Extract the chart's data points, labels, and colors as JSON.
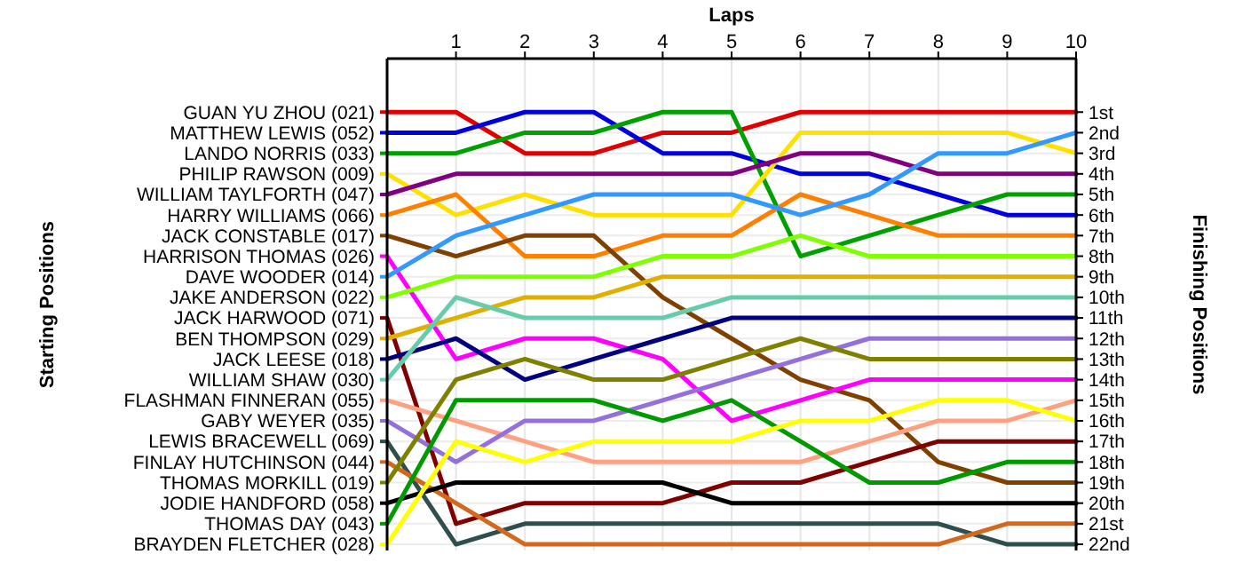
{
  "chart_data": {
    "type": "line",
    "xlabel": "Laps",
    "ylabel": "Finishing Positions",
    "x": [
      0,
      1,
      2,
      3,
      4,
      5,
      6,
      7,
      8,
      9,
      10
    ],
    "xlim": [
      0,
      10
    ],
    "xticks": [
      1,
      2,
      3,
      4,
      5,
      6,
      7,
      8,
      9,
      10
    ],
    "ylim": [
      22.3,
      -1.6
    ],
    "grid": true,
    "legend": "left",
    "marker": "none",
    "line_style": "solid",
    "yticks": [
      {
        "value": 1,
        "label": "1st"
      },
      {
        "value": 2,
        "label": "2nd"
      },
      {
        "value": 3,
        "label": "3rd"
      },
      {
        "value": 4,
        "label": "4th"
      },
      {
        "value": 5,
        "label": "5th"
      },
      {
        "value": 6,
        "label": "6th"
      },
      {
        "value": 7,
        "label": "7th"
      },
      {
        "value": 8,
        "label": "8th"
      },
      {
        "value": 9,
        "label": "9th"
      },
      {
        "value": 10,
        "label": "10th"
      },
      {
        "value": 11,
        "label": "11th"
      },
      {
        "value": 12,
        "label": "12th"
      },
      {
        "value": 13,
        "label": "13th"
      },
      {
        "value": 14,
        "label": "14th"
      },
      {
        "value": 15,
        "label": "15th"
      },
      {
        "value": 16,
        "label": "16th"
      },
      {
        "value": 17,
        "label": "17th"
      },
      {
        "value": 18,
        "label": "18th"
      },
      {
        "value": 19,
        "label": "19th"
      },
      {
        "value": 20,
        "label": "20th"
      },
      {
        "value": 21,
        "label": "21st"
      },
      {
        "value": 22,
        "label": "22nd"
      }
    ],
    "annotations": [
      "Starting Positions"
    ],
    "series": [
      {
        "name": "GUAN YU ZHOU (021)",
        "color": "#e00000",
        "values": [
          1,
          1,
          3,
          3,
          2,
          2,
          1,
          1,
          1,
          1,
          1
        ]
      },
      {
        "name": "MATTHEW LEWIS (052)",
        "color": "#0000dd",
        "values": [
          2,
          2,
          1,
          1,
          3,
          3,
          4,
          4,
          5,
          6,
          6
        ]
      },
      {
        "name": "LANDO NORRIS (033)",
        "color": "#00a000",
        "values": [
          3,
          3,
          2,
          2,
          1,
          1,
          8,
          7,
          6,
          5,
          5
        ]
      },
      {
        "name": "PHILIP RAWSON (009)",
        "color": "#ffe000",
        "values": [
          4,
          6,
          5,
          6,
          6,
          6,
          2,
          2,
          2,
          2,
          3
        ]
      },
      {
        "name": "WILLIAM TAYLFORTH (047)",
        "color": "#800080",
        "values": [
          5,
          4,
          4,
          4,
          4,
          4,
          3,
          3,
          4,
          4,
          4
        ]
      },
      {
        "name": "HARRY WILLIAMS (066)",
        "color": "#ff8000",
        "values": [
          6,
          5,
          8,
          8,
          7,
          7,
          5,
          6,
          7,
          7,
          7
        ]
      },
      {
        "name": "JACK CONSTABLE (017)",
        "color": "#804000",
        "values": [
          7,
          8,
          7,
          7,
          10,
          12,
          14,
          15,
          18,
          19,
          19
        ]
      },
      {
        "name": "HARRISON THOMAS (026)",
        "color": "#ff00ff",
        "values": [
          8,
          13,
          12,
          12,
          13,
          16,
          15,
          14,
          14,
          14,
          14
        ]
      },
      {
        "name": "DAVE WOODER (014)",
        "color": "#3399ff",
        "values": [
          9,
          7,
          6,
          5,
          5,
          5,
          6,
          5,
          3,
          3,
          2
        ]
      },
      {
        "name": "JAKE ANDERSON (022)",
        "color": "#80ff00",
        "values": [
          10,
          9,
          9,
          9,
          8,
          8,
          7,
          8,
          8,
          8,
          8
        ]
      },
      {
        "name": "JACK HARWOOD (071)",
        "color": "#800000",
        "values": [
          11,
          21,
          20,
          20,
          20,
          19,
          19,
          18,
          17,
          17,
          17
        ]
      },
      {
        "name": "BEN THOMPSON (029)",
        "color": "#e0b000",
        "values": [
          12,
          11,
          10,
          10,
          9,
          9,
          9,
          9,
          9,
          9,
          9
        ]
      },
      {
        "name": "JACK LEESE (018)",
        "color": "#000080",
        "values": [
          13,
          12,
          14,
          13,
          12,
          11,
          11,
          11,
          11,
          11,
          11
        ]
      },
      {
        "name": "WILLIAM SHAW (030)",
        "color": "#66ccaa",
        "values": [
          14,
          10,
          11,
          11,
          11,
          10,
          10,
          10,
          10,
          10,
          10
        ]
      },
      {
        "name": "FLASHMAN FINNERAN (055)",
        "color": "#ffa080",
        "values": [
          15,
          16,
          17,
          18,
          18,
          18,
          18,
          17,
          16,
          16,
          15
        ]
      },
      {
        "name": "GABY WEYER (035)",
        "color": "#9370db",
        "values": [
          16,
          18,
          16,
          16,
          15,
          14,
          13,
          12,
          12,
          12,
          12
        ]
      },
      {
        "name": "LEWIS BRACEWELL (069)",
        "color": "#2f4f4f",
        "values": [
          17,
          22,
          21,
          21,
          21,
          21,
          21,
          21,
          21,
          22,
          22
        ]
      },
      {
        "name": "FINLAY HUTCHINSON (044)",
        "color": "#d2691e",
        "values": [
          18,
          20,
          22,
          22,
          22,
          22,
          22,
          22,
          22,
          21,
          21
        ]
      },
      {
        "name": "THOMAS MORKILL (019)",
        "color": "#808000",
        "values": [
          19,
          14,
          13,
          14,
          14,
          13,
          12,
          13,
          13,
          13,
          13
        ]
      },
      {
        "name": "JODIE HANDFORD (058)",
        "color": "#000000",
        "values": [
          20,
          19,
          19,
          19,
          19,
          20,
          20,
          20,
          20,
          20,
          20
        ]
      },
      {
        "name": "THOMAS DAY (043)",
        "color": "#009900",
        "values": [
          21,
          15,
          15,
          15,
          16,
          15,
          17,
          19,
          19,
          18,
          18
        ]
      },
      {
        "name": "BRAYDEN FLETCHER (028)",
        "color": "#ffff00",
        "values": [
          22,
          17,
          18,
          17,
          17,
          17,
          16,
          16,
          15,
          15,
          16
        ]
      }
    ]
  }
}
